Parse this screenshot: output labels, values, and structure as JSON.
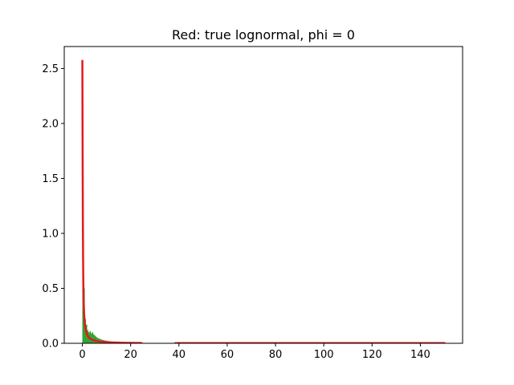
{
  "chart_data": {
    "type": "bar",
    "title": "Red: true lognormal, phi = 0",
    "xlabel": "",
    "ylabel": "",
    "xlim": [
      -7.5,
      157.5
    ],
    "ylim": [
      0,
      2.7
    ],
    "xticks": [
      0,
      20,
      40,
      60,
      80,
      100,
      120,
      140
    ],
    "yticks": [
      0.0,
      0.5,
      1.0,
      1.5,
      2.0,
      2.5
    ],
    "grid": false,
    "legend": "none",
    "colors": {
      "orange_hist": "#ff7f0e",
      "green_hist": "#2ca02c",
      "true_density": "#e31a1c"
    },
    "series": [
      {
        "kind": "histogram",
        "color": "#ff7f0e",
        "x_range": [
          38.5,
          150
        ],
        "bins": [
          {
            "x": 41,
            "y": 0.003
          },
          {
            "x": 45,
            "y": 0.004
          },
          {
            "x": 49,
            "y": 0.003
          },
          {
            "x": 53,
            "y": 0.005
          },
          {
            "x": 57,
            "y": 0.004
          },
          {
            "x": 61,
            "y": 0.006
          },
          {
            "x": 65,
            "y": 0.005
          },
          {
            "x": 68,
            "y": 0.009
          },
          {
            "x": 72,
            "y": 0.006
          },
          {
            "x": 76,
            "y": 0.008
          },
          {
            "x": 80,
            "y": 0.007
          },
          {
            "x": 84,
            "y": 0.009
          },
          {
            "x": 88,
            "y": 0.01
          },
          {
            "x": 92,
            "y": 0.006
          },
          {
            "x": 96,
            "y": 0.008
          },
          {
            "x": 100,
            "y": 0.007
          },
          {
            "x": 104,
            "y": 0.005
          },
          {
            "x": 108,
            "y": 0.004
          },
          {
            "x": 112,
            "y": 0.003
          },
          {
            "x": 116,
            "y": 0.003
          },
          {
            "x": 120,
            "y": 0.003
          },
          {
            "x": 124,
            "y": 0.002
          },
          {
            "x": 128,
            "y": 0.002
          },
          {
            "x": 131,
            "y": 0.006
          },
          {
            "x": 136,
            "y": 0.002
          },
          {
            "x": 140,
            "y": 0.002
          },
          {
            "x": 145,
            "y": 0.001
          }
        ]
      },
      {
        "kind": "histogram",
        "color": "#2ca02c",
        "x_range": [
          0,
          24.5
        ],
        "bins": [
          {
            "x": 0.25,
            "y": 1.7
          },
          {
            "x": 0.75,
            "y": 0.5
          },
          {
            "x": 1.25,
            "y": 0.22
          },
          {
            "x": 1.75,
            "y": 0.17
          },
          {
            "x": 2.25,
            "y": 0.12
          },
          {
            "x": 2.75,
            "y": 0.1
          },
          {
            "x": 3.25,
            "y": 0.11
          },
          {
            "x": 3.75,
            "y": 0.09
          },
          {
            "x": 4.25,
            "y": 0.1
          },
          {
            "x": 4.75,
            "y": 0.08
          },
          {
            "x": 5.25,
            "y": 0.07
          },
          {
            "x": 5.75,
            "y": 0.06
          },
          {
            "x": 6.25,
            "y": 0.05
          },
          {
            "x": 6.75,
            "y": 0.045
          },
          {
            "x": 7.25,
            "y": 0.04
          },
          {
            "x": 7.75,
            "y": 0.035
          },
          {
            "x": 8.5,
            "y": 0.03
          },
          {
            "x": 9.5,
            "y": 0.025
          },
          {
            "x": 10.5,
            "y": 0.02
          },
          {
            "x": 11.5,
            "y": 0.018
          },
          {
            "x": 12.5,
            "y": 0.015
          },
          {
            "x": 13.5,
            "y": 0.012
          },
          {
            "x": 14.5,
            "y": 0.01
          },
          {
            "x": 15.5,
            "y": 0.009
          },
          {
            "x": 16.5,
            "y": 0.008
          },
          {
            "x": 17.5,
            "y": 0.007
          },
          {
            "x": 18.5,
            "y": 0.006
          },
          {
            "x": 19.5,
            "y": 0.005
          },
          {
            "x": 20.5,
            "y": 0.005
          },
          {
            "x": 21.5,
            "y": 0.004
          },
          {
            "x": 22.5,
            "y": 0.004
          },
          {
            "x": 23.5,
            "y": 0.003
          }
        ]
      },
      {
        "kind": "line",
        "color": "#e31a1c",
        "points": [
          [
            0.0,
            2.57
          ],
          [
            0.05,
            2.2
          ],
          [
            0.1,
            1.8
          ],
          [
            0.15,
            1.45
          ],
          [
            0.2,
            1.15
          ],
          [
            0.3,
            0.78
          ],
          [
            0.4,
            0.55
          ],
          [
            0.5,
            0.42
          ],
          [
            0.7,
            0.28
          ],
          [
            1.0,
            0.18
          ],
          [
            1.5,
            0.11
          ],
          [
            2.0,
            0.075
          ],
          [
            3.0,
            0.045
          ],
          [
            4.0,
            0.032
          ],
          [
            6.0,
            0.02
          ],
          [
            8.0,
            0.014
          ],
          [
            12.0,
            0.008
          ],
          [
            16.0,
            0.005
          ],
          [
            20.0,
            0.004
          ],
          [
            24.5,
            0.003
          ]
        ]
      },
      {
        "kind": "line",
        "color": "#e31a1c",
        "points": [
          [
            38.5,
            0.002
          ],
          [
            150.0,
            0.002
          ]
        ]
      }
    ]
  }
}
